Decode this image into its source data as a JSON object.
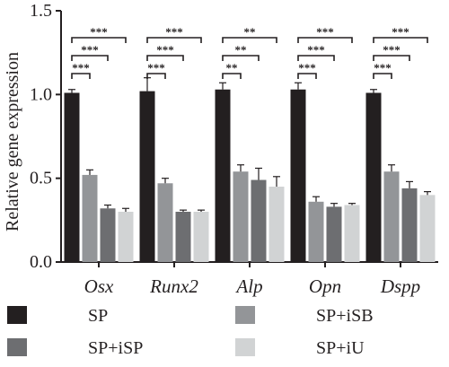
{
  "chart_data": {
    "type": "bar",
    "title": "",
    "xlabel": "",
    "ylabel": "Relative gene expression",
    "ylim": [
      0,
      1.5
    ],
    "yticks": [
      "0.0",
      "0.5",
      "1.0",
      "1.5"
    ],
    "grid": false,
    "legend_position": "bottom",
    "categories": [
      "Osx",
      "Runx2",
      "Alp",
      "Opn",
      "Dspp"
    ],
    "series": [
      {
        "name": "SP",
        "color": "#231f20",
        "values": [
          1.01,
          1.02,
          1.03,
          1.03,
          1.01
        ],
        "errors": [
          0.02,
          0.08,
          0.04,
          0.04,
          0.02
        ]
      },
      {
        "name": "SP+iSB",
        "color": "#939598",
        "values": [
          0.52,
          0.47,
          0.54,
          0.36,
          0.54
        ],
        "errors": [
          0.03,
          0.03,
          0.04,
          0.03,
          0.04
        ]
      },
      {
        "name": "SP+iSP",
        "color": "#6d6e71",
        "values": [
          0.32,
          0.3,
          0.49,
          0.33,
          0.44
        ],
        "errors": [
          0.02,
          0.01,
          0.07,
          0.02,
          0.04
        ]
      },
      {
        "name": "SP+iU",
        "color": "#d1d3d4",
        "values": [
          0.3,
          0.3,
          0.45,
          0.34,
          0.4
        ],
        "errors": [
          0.02,
          0.01,
          0.06,
          0.01,
          0.02
        ]
      }
    ],
    "significance": [
      {
        "category": "Osx",
        "labels": [
          "***",
          "***",
          "***"
        ]
      },
      {
        "category": "Runx2",
        "labels": [
          "***",
          "***",
          "***"
        ]
      },
      {
        "category": "Alp",
        "labels": [
          "**",
          "**",
          "**"
        ]
      },
      {
        "category": "Opn",
        "labels": [
          "***",
          "***",
          "***"
        ]
      },
      {
        "category": "Dspp",
        "labels": [
          "***",
          "***",
          "***"
        ]
      }
    ],
    "legend": [
      "SP",
      "SP+iSB",
      "SP+iSP",
      "SP+iU"
    ]
  }
}
